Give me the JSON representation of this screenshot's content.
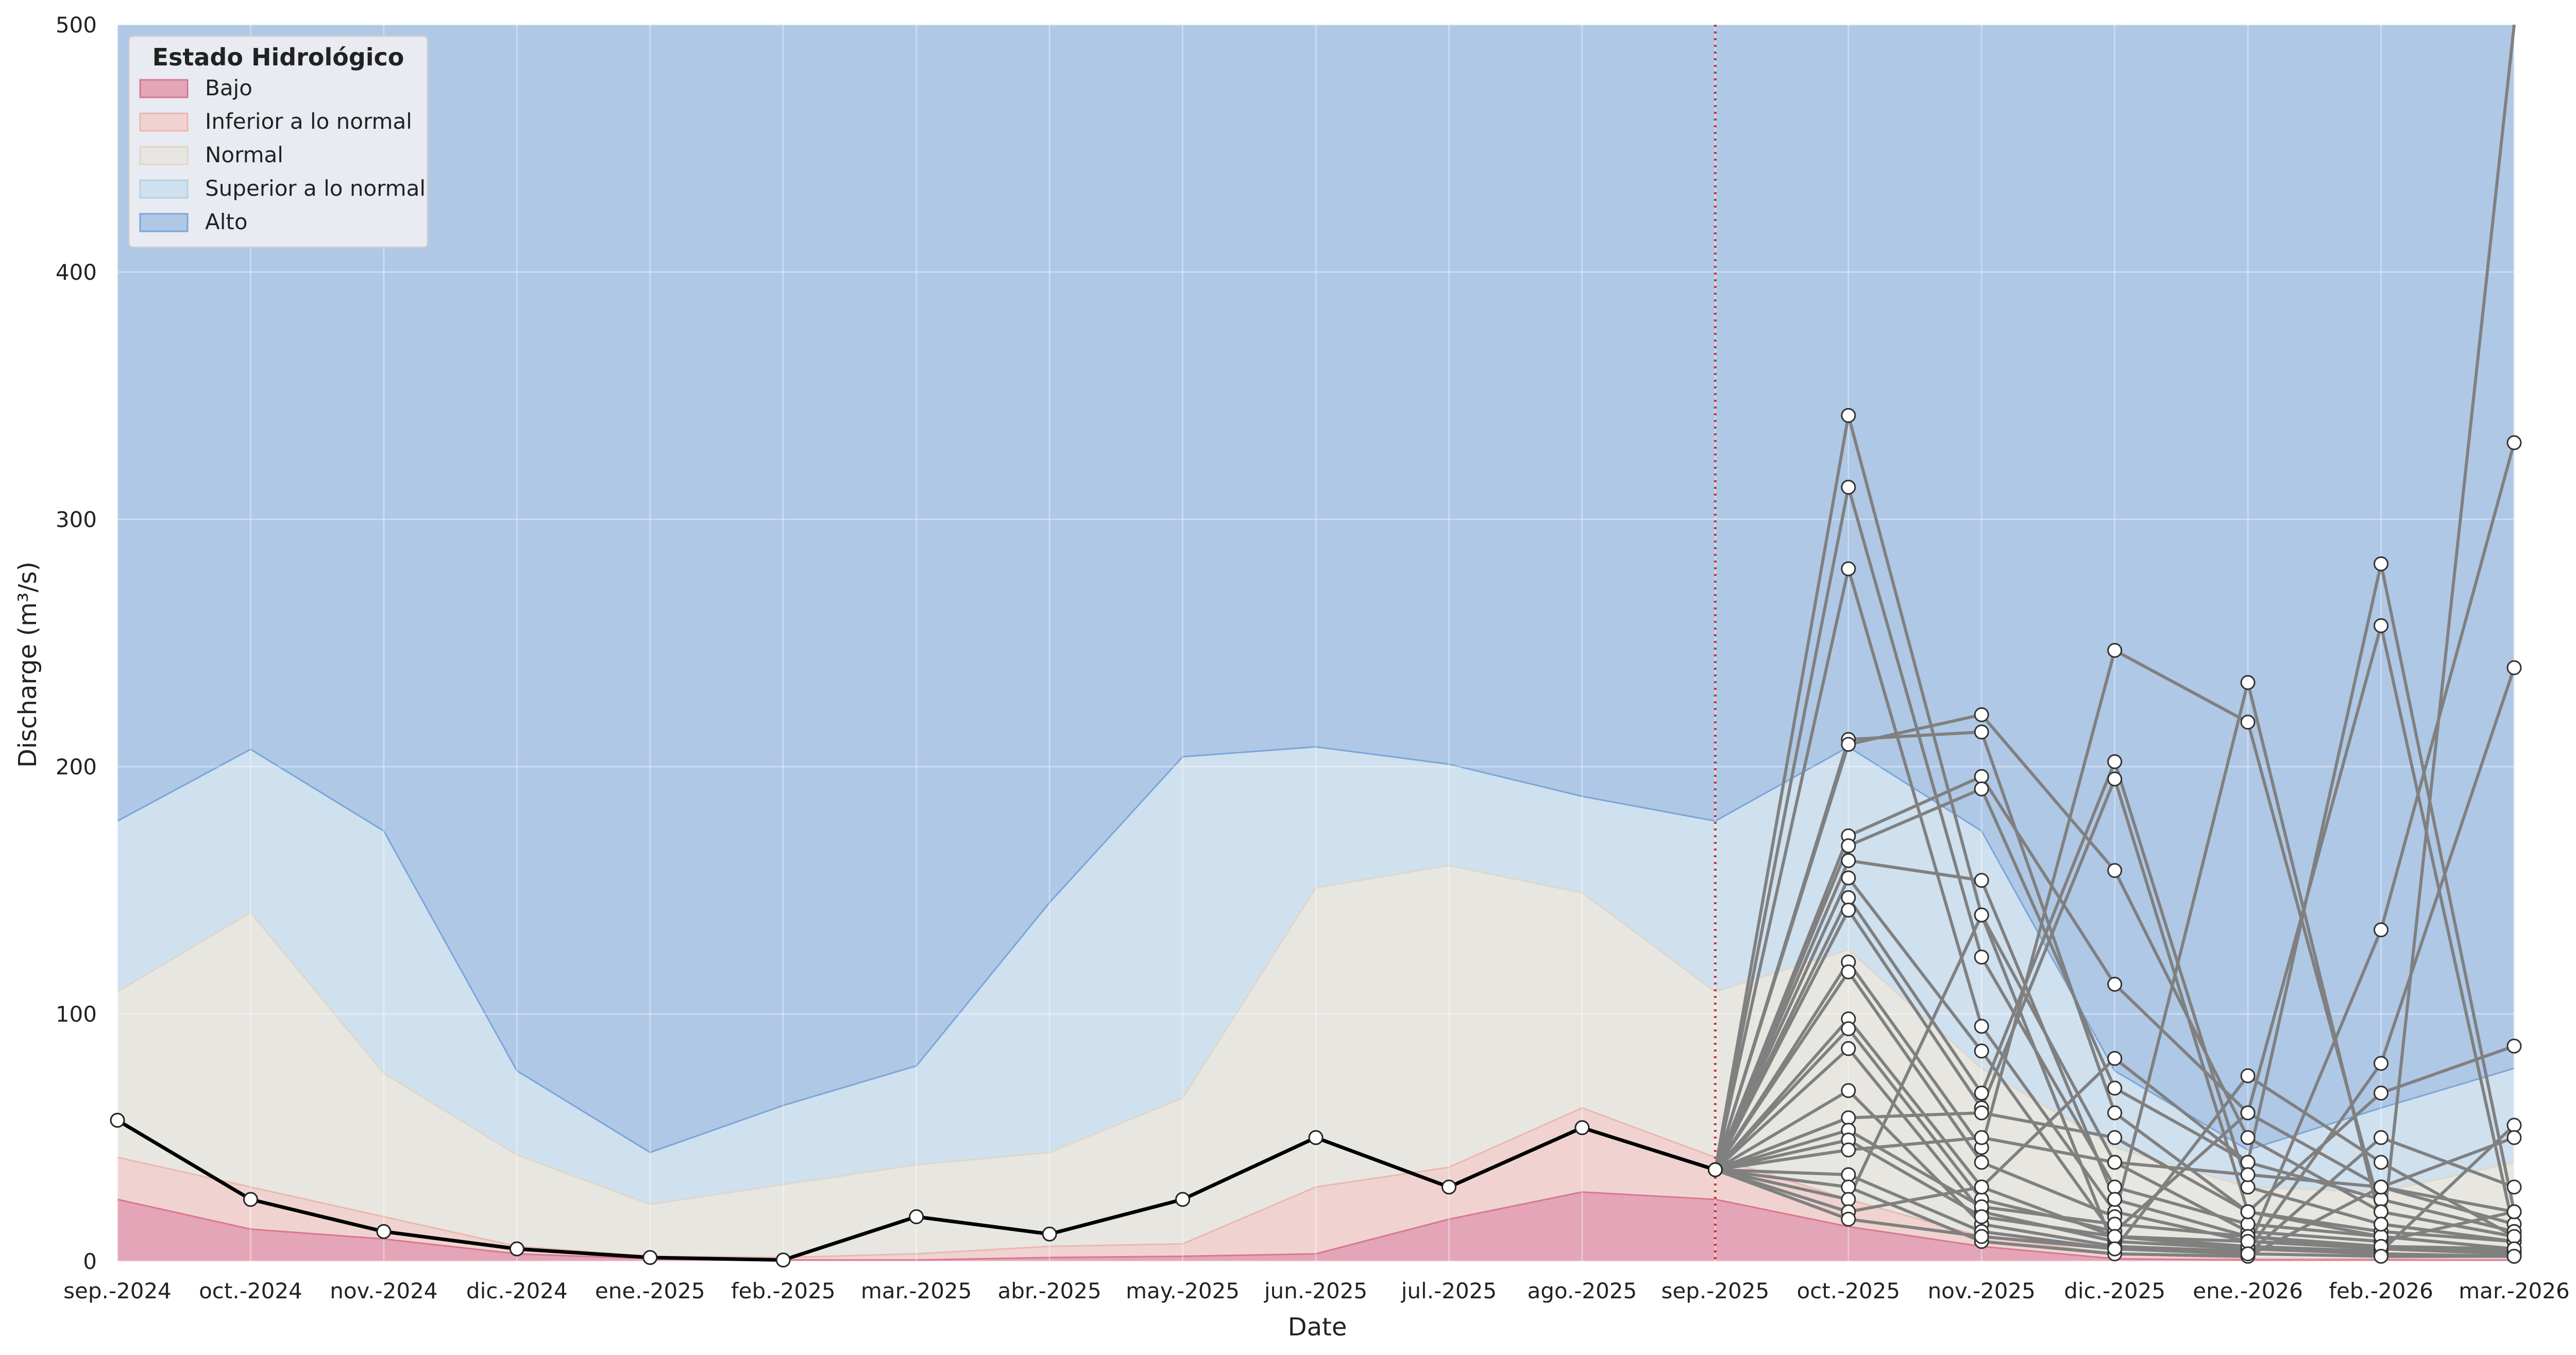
{
  "chart_data": {
    "type": "area",
    "xlabel": "Date",
    "ylabel": "Discharge (m³/s)",
    "ylim": [
      0,
      500
    ],
    "y_ticks": [
      0,
      100,
      200,
      300,
      400,
      500
    ],
    "x_tick_labels": [
      "sep.-2024",
      "oct.-2024",
      "nov.-2024",
      "dic.-2024",
      "ene.-2025",
      "feb.-2025",
      "mar.-2025",
      "abr.-2025",
      "may.-2025",
      "jun.-2025",
      "jul.-2025",
      "ago.-2025",
      "sep.-2025",
      "oct.-2025",
      "nov.-2025",
      "dic.-2025",
      "ene.-2026",
      "feb.-2026",
      "mar.-2026"
    ],
    "grid": true,
    "legend": {
      "title": "Estado Hidrológico",
      "placement": "top-left",
      "entries": [
        {
          "label": "Bajo",
          "color": "#e3a5b7"
        },
        {
          "label": "Inferior a lo normal",
          "color": "#f0d3d0"
        },
        {
          "label": "Normal",
          "color": "#e8e6e0"
        },
        {
          "label": "Superior a lo normal",
          "color": "#cfe0ef"
        },
        {
          "label": "Alto",
          "color": "#afc8e6"
        }
      ]
    },
    "thresholds": {
      "bajo_upper": [
        25,
        13,
        9,
        3,
        1,
        0.5,
        0.5,
        1.5,
        2,
        3,
        17,
        28,
        25,
        14,
        6,
        1,
        0.5,
        0.5,
        0.5
      ],
      "inferior_upper": [
        42,
        30,
        18,
        6,
        2,
        1.5,
        3,
        6,
        7,
        30,
        38,
        62,
        42,
        25,
        10,
        3,
        1,
        1,
        2
      ],
      "normal_upper": [
        109,
        141,
        76,
        43,
        23,
        31,
        39,
        44,
        66,
        151,
        160,
        149,
        109,
        126,
        78,
        46,
        30,
        28,
        40
      ],
      "superior_upper": [
        178,
        207,
        174,
        77,
        44,
        63,
        79,
        145,
        204,
        208,
        201,
        188,
        178,
        208,
        174,
        77,
        45,
        62,
        78
      ],
      "alto_upper": 500
    },
    "observed": {
      "color": "#000000",
      "x_index": [
        0,
        1,
        2,
        3,
        4,
        5,
        6,
        7,
        8,
        9,
        10,
        11,
        12
      ],
      "values": [
        57,
        25,
        12,
        5,
        1.5,
        0.5,
        18,
        11,
        25,
        50,
        30,
        54,
        37
      ]
    },
    "forecast_start_marker": {
      "x_label": "sep.-2025",
      "color": "#cc3333"
    },
    "forecast_ensemble": {
      "color": "#808080",
      "start_x_index": 12,
      "start_value": 37,
      "x_index": [
        13,
        14,
        15,
        16,
        17,
        18
      ],
      "members": [
        [
          342,
          140,
          40,
          12,
          8,
          20
        ],
        [
          313,
          123,
          30,
          15,
          10,
          5
        ],
        [
          280,
          95,
          20,
          8,
          5,
          3
        ],
        [
          211,
          214,
          60,
          20,
          12,
          8
        ],
        [
          209,
          221,
          158,
          50,
          20,
          10
        ],
        [
          172,
          196,
          112,
          60,
          30,
          15
        ],
        [
          168,
          191,
          70,
          40,
          25,
          12
        ],
        [
          162,
          154,
          25,
          10,
          6,
          4
        ],
        [
          155,
          85,
          10,
          5,
          3,
          2
        ],
        [
          147,
          68,
          202,
          30,
          15,
          8
        ],
        [
          142,
          62,
          195,
          20,
          10,
          5
        ],
        [
          121,
          46,
          247,
          218,
          20,
          10
        ],
        [
          117,
          40,
          18,
          234,
          15,
          8
        ],
        [
          98,
          30,
          82,
          40,
          282,
          20
        ],
        [
          94,
          25,
          12,
          60,
          257,
          12
        ],
        [
          86,
          20,
          8,
          5,
          134,
          331
        ],
        [
          69,
          15,
          6,
          4,
          80,
          240
        ],
        [
          58,
          60,
          50,
          20,
          68,
          87
        ],
        [
          53,
          22,
          15,
          10,
          5,
          510
        ],
        [
          49,
          18,
          10,
          6,
          4,
          55
        ],
        [
          45,
          50,
          40,
          35,
          30,
          50
        ],
        [
          35,
          12,
          5,
          3,
          50,
          30
        ],
        [
          30,
          8,
          3,
          2,
          30,
          20
        ],
        [
          25,
          140,
          5,
          75,
          40,
          10
        ],
        [
          20,
          30,
          10,
          8,
          6,
          5
        ],
        [
          17,
          10,
          5,
          3,
          2,
          2
        ]
      ]
    }
  }
}
